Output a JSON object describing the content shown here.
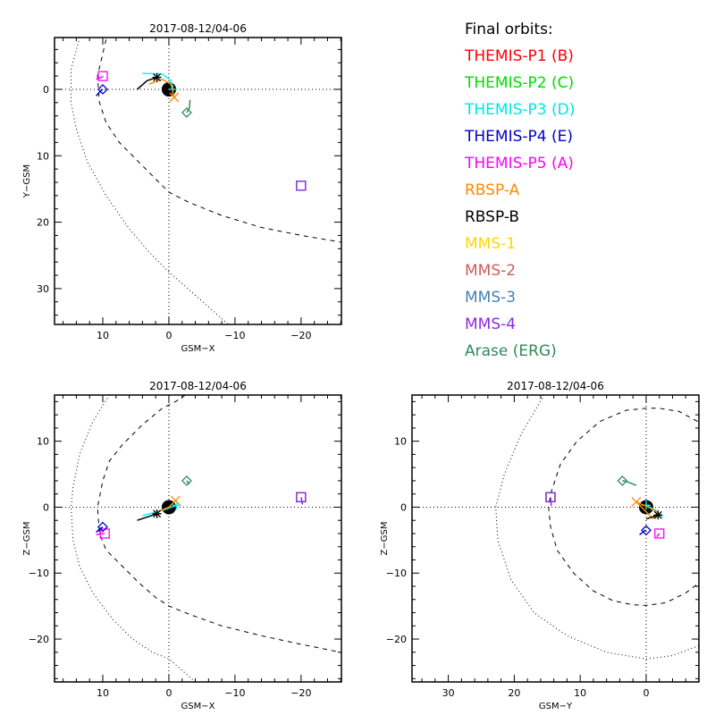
{
  "chart_data": [
    {
      "type": "scatter",
      "title": "2017-08-12/04-06",
      "xlabel": "GSM-X",
      "ylabel": "Y-GSM",
      "xlim": [
        17.3,
        -26.1
      ],
      "ylim": [
        -7.8,
        35.4
      ],
      "y_inverted": true,
      "xticks": [
        10,
        0,
        -10,
        -20
      ],
      "yticks": [
        0,
        10,
        20,
        30
      ],
      "reference_curves": [
        {
          "name": "magnetopause",
          "style": "dashed",
          "points": [
            [
              9.5,
              -7.5
            ],
            [
              10.8,
              -2
            ],
            [
              10.5,
              2
            ],
            [
              9.5,
              5
            ],
            [
              7.5,
              8
            ],
            [
              4.5,
              11
            ],
            [
              2,
              13.5
            ],
            [
              0,
              15.5
            ],
            [
              -3,
              17
            ],
            [
              -8,
              19
            ],
            [
              -14,
              20.8
            ],
            [
              -20,
              22
            ],
            [
              -26,
              23
            ]
          ]
        },
        {
          "name": "bow-shock",
          "style": "dotted",
          "points": [
            [
              13.5,
              -7.8
            ],
            [
              14.8,
              -3
            ],
            [
              14.8,
              2
            ],
            [
              14,
              6
            ],
            [
              12.3,
              11
            ],
            [
              9.5,
              16
            ],
            [
              6,
              21
            ],
            [
              3,
              24.5
            ],
            [
              0,
              27.5
            ],
            [
              -4,
              31
            ],
            [
              -9,
              35.4
            ]
          ]
        }
      ],
      "spacecraft": [
        {
          "name": "THEMIS-P5",
          "color": "#ff00ff",
          "marker": "square",
          "pos": [
            10,
            -2
          ],
          "track": [
            [
              11,
              -1.5
            ],
            [
              10.2,
              -1.8
            ]
          ]
        },
        {
          "name": "THEMIS-P4",
          "color": "#0000cc",
          "marker": "diamond",
          "pos": [
            10,
            0
          ],
          "track": [
            [
              11,
              1
            ],
            [
              10.3,
              0.2
            ]
          ]
        },
        {
          "name": "THEMIS-P3",
          "color": "#00ffff",
          "marker": "plus",
          "pos": [
            -0.6,
            0
          ],
          "track": [
            [
              4,
              -2.4
            ],
            [
              1,
              -2.3
            ],
            [
              -0.3,
              -1.3
            ],
            [
              -0.6,
              0
            ]
          ]
        },
        {
          "name": "RBSP-A",
          "color": "#ff8800",
          "marker": "x",
          "pos": [
            -0.8,
            1.2
          ],
          "track": [
            [
              3,
              -0.8
            ],
            [
              1,
              -1.5
            ],
            [
              -0.3,
              -0.8
            ],
            [
              -0.8,
              1.2
            ]
          ]
        },
        {
          "name": "RBSP-B",
          "color": "#000000",
          "marker": "asterisk",
          "pos": [
            1.8,
            -1.8
          ],
          "track": [
            [
              4.8,
              0
            ],
            [
              3.3,
              -1.3
            ],
            [
              1.8,
              -1.8
            ]
          ]
        },
        {
          "name": "Arase (ERG)",
          "color": "#2e8b57",
          "marker": "diamond",
          "pos": [
            -2.7,
            3.5
          ],
          "track": [
            [
              -3.2,
              1.6
            ],
            [
              -3.1,
              2.8
            ],
            [
              -2.7,
              3.5
            ]
          ]
        },
        {
          "name": "MMS-1",
          "color": "#ffd700",
          "marker": "square",
          "pos": [
            -20,
            14.5
          ],
          "track": []
        },
        {
          "name": "MMS-2",
          "color": "#cd5c5c",
          "marker": "square",
          "pos": [
            -20,
            14.5
          ],
          "track": []
        },
        {
          "name": "MMS-3",
          "color": "#4682b4",
          "marker": "square",
          "pos": [
            -20,
            14.5
          ],
          "track": []
        },
        {
          "name": "MMS-4",
          "color": "#8a2be2",
          "marker": "square",
          "pos": [
            -20,
            14.5
          ],
          "track": []
        }
      ]
    },
    {
      "type": "scatter",
      "title": "2017-08-12/04-06",
      "xlabel": "GSM-X",
      "ylabel": "Z-GSM",
      "xlim": [
        17.3,
        -26.1
      ],
      "ylim": [
        -26.5,
        17.0
      ],
      "xticks": [
        10,
        0,
        -10,
        -20
      ],
      "yticks": [
        10,
        0,
        -10,
        -20
      ],
      "reference_curves": [
        {
          "name": "magnetopause",
          "style": "dashed",
          "points": [
            [
              -2.5,
              17
            ],
            [
              -1,
              16
            ],
            [
              1,
              15
            ],
            [
              4,
              12.5
            ],
            [
              7,
              9.5
            ],
            [
              9,
              7
            ],
            [
              10,
              4
            ],
            [
              10.8,
              0
            ],
            [
              10.5,
              -4
            ],
            [
              9.5,
              -6.5
            ],
            [
              7,
              -9
            ],
            [
              4.5,
              -11.5
            ],
            [
              2,
              -13.7
            ],
            [
              0,
              -15
            ],
            [
              -3,
              -16.2
            ],
            [
              -8,
              -18
            ],
            [
              -14,
              -19.5
            ],
            [
              -20,
              -20.8
            ],
            [
              -26,
              -22
            ]
          ]
        },
        {
          "name": "bow-shock",
          "style": "dotted",
          "points": [
            [
              9,
              17
            ],
            [
              11.5,
              13
            ],
            [
              13.5,
              8
            ],
            [
              14.5,
              3
            ],
            [
              14.8,
              0
            ],
            [
              14.5,
              -5
            ],
            [
              13.5,
              -9
            ],
            [
              11.5,
              -13
            ],
            [
              8.5,
              -17
            ],
            [
              5.5,
              -20
            ],
            [
              2.5,
              -22
            ],
            [
              0,
              -23
            ],
            [
              -4,
              -26.5
            ]
          ]
        }
      ],
      "spacecraft": [
        {
          "name": "THEMIS-P5",
          "color": "#ff00ff",
          "marker": "square",
          "pos": [
            9.7,
            -4
          ],
          "track": [
            [
              11,
              -4.2
            ],
            [
              10.3,
              -4
            ]
          ]
        },
        {
          "name": "THEMIS-P4",
          "color": "#0000cc",
          "marker": "diamond",
          "pos": [
            10,
            -3
          ],
          "track": [
            [
              11,
              -3.8
            ],
            [
              10.3,
              -3.2
            ]
          ]
        },
        {
          "name": "THEMIS-P3",
          "color": "#00ffff",
          "marker": "plus",
          "pos": [
            -1.2,
            0.3
          ],
          "track": [
            [
              4,
              -1.3
            ],
            [
              1,
              -0.5
            ],
            [
              -1.2,
              0.3
            ]
          ]
        },
        {
          "name": "RBSP-A",
          "color": "#ff8800",
          "marker": "x",
          "pos": [
            -1,
            1
          ],
          "track": [
            [
              2,
              -0.8
            ],
            [
              0,
              0
            ],
            [
              -1,
              1
            ]
          ]
        },
        {
          "name": "RBSP-B",
          "color": "#000000",
          "marker": "asterisk",
          "pos": [
            1.8,
            -1
          ],
          "track": [
            [
              4.8,
              -2
            ],
            [
              3,
              -1.4
            ],
            [
              1.8,
              -1
            ]
          ]
        },
        {
          "name": "Arase (ERG)",
          "color": "#2e8b57",
          "marker": "diamond",
          "pos": [
            -2.7,
            4
          ],
          "track": [
            [
              -3.1,
              3.5
            ],
            [
              -2.7,
              4
            ]
          ]
        },
        {
          "name": "MMS-1",
          "color": "#ffd700",
          "marker": "square",
          "pos": [
            -20,
            1.5
          ],
          "track": []
        },
        {
          "name": "MMS-2",
          "color": "#cd5c5c",
          "marker": "square",
          "pos": [
            -20,
            1.5
          ],
          "track": []
        },
        {
          "name": "MMS-3",
          "color": "#4682b4",
          "marker": "square",
          "pos": [
            -20,
            1.5
          ],
          "track": []
        },
        {
          "name": "MMS-4",
          "color": "#8a2be2",
          "marker": "square",
          "pos": [
            -20,
            1.5
          ],
          "track": [
            [
              -20.2,
              0.4
            ],
            [
              -20,
              1.5
            ]
          ]
        }
      ]
    },
    {
      "type": "scatter",
      "title": "2017-08-12/04-06",
      "xlabel": "GSM-Y",
      "ylabel": "Z-GSM",
      "xlim": [
        35.5,
        -8.0
      ],
      "ylim": [
        -26.5,
        17.0
      ],
      "xticks": [
        30,
        20,
        10,
        0
      ],
      "yticks": [
        10,
        0,
        -10,
        -20
      ],
      "reference_curves": [
        {
          "name": "magnetopause",
          "style": "dashed",
          "points": [
            [
              -7.8,
              13
            ],
            [
              -5,
              14.5
            ],
            [
              -2,
              15
            ],
            [
              0,
              15
            ],
            [
              3,
              14.7
            ],
            [
              7,
              13
            ],
            [
              10.5,
              10
            ],
            [
              13,
              6.5
            ],
            [
              14.5,
              2
            ],
            [
              14.8,
              0
            ],
            [
              14.5,
              -3
            ],
            [
              13.5,
              -6.5
            ],
            [
              11,
              -10
            ],
            [
              8,
              -12.7
            ],
            [
              5,
              -14.2
            ],
            [
              2,
              -14.8
            ],
            [
              0,
              -14.9
            ],
            [
              -3,
              -14.5
            ],
            [
              -6,
              -13
            ],
            [
              -8,
              -11.5
            ]
          ]
        },
        {
          "name": "bow-shock",
          "style": "dotted",
          "points": [
            [
              15.5,
              17
            ],
            [
              19,
              11
            ],
            [
              21.5,
              5
            ],
            [
              22.8,
              0
            ],
            [
              22.5,
              -5
            ],
            [
              20.5,
              -11
            ],
            [
              17,
              -16
            ],
            [
              12,
              -19.5
            ],
            [
              6,
              -22
            ],
            [
              0,
              -23
            ],
            [
              -4,
              -22.5
            ],
            [
              -8,
              -21
            ]
          ]
        }
      ],
      "spacecraft": [
        {
          "name": "THEMIS-P5",
          "color": "#ff00ff",
          "marker": "square",
          "pos": [
            -2,
            -4
          ],
          "track": [
            [
              -1.6,
              -4.5
            ]
          ]
        },
        {
          "name": "THEMIS-P4",
          "color": "#0000cc",
          "marker": "diamond",
          "pos": [
            0,
            -3.5
          ],
          "track": [
            [
              1,
              -4.2
            ],
            [
              0.3,
              -3.6
            ]
          ]
        },
        {
          "name": "THEMIS-P3",
          "color": "#00ffff",
          "marker": "plus",
          "pos": [
            0,
            0.3
          ],
          "track": [
            [
              0,
              0.3
            ],
            [
              -1.5,
              -0.5
            ],
            [
              -2.5,
              -1.5
            ]
          ]
        },
        {
          "name": "RBSP-A",
          "color": "#ff8800",
          "marker": "x",
          "pos": [
            1.5,
            0.8
          ],
          "track": [
            [
              1.5,
              0.8
            ],
            [
              -1,
              -0.3
            ],
            [
              -2,
              -1
            ],
            [
              -1,
              -1.7
            ]
          ]
        },
        {
          "name": "RBSP-B",
          "color": "#000000",
          "marker": "asterisk",
          "pos": [
            -1.8,
            -1.2
          ],
          "track": [
            [
              0,
              -1.8
            ],
            [
              -1.8,
              -1.2
            ]
          ]
        },
        {
          "name": "Arase (ERG)",
          "color": "#2e8b57",
          "marker": "diamond",
          "pos": [
            3.6,
            4
          ],
          "track": [
            [
              1.5,
              3.3
            ],
            [
              3,
              3.9
            ],
            [
              3.6,
              4
            ]
          ]
        },
        {
          "name": "MMS-1",
          "color": "#ffd700",
          "marker": "square",
          "pos": [
            14.5,
            1.5
          ],
          "track": []
        },
        {
          "name": "MMS-2",
          "color": "#cd5c5c",
          "marker": "square",
          "pos": [
            14.5,
            1.5
          ],
          "track": []
        },
        {
          "name": "MMS-3",
          "color": "#4682b4",
          "marker": "square",
          "pos": [
            14.5,
            1.5
          ],
          "track": []
        },
        {
          "name": "MMS-4",
          "color": "#8a2be2",
          "marker": "square",
          "pos": [
            14.5,
            1.5
          ],
          "track": [
            [
              14.4,
              0.2
            ],
            [
              14.5,
              1.5
            ]
          ]
        }
      ]
    }
  ],
  "legend": {
    "title": "Final orbits:",
    "entries": [
      {
        "label": "THEMIS-P1 (B)",
        "color": "#ff0000"
      },
      {
        "label": "THEMIS-P2 (C)",
        "color": "#00dd00"
      },
      {
        "label": "THEMIS-P3 (D)",
        "color": "#00e5e5"
      },
      {
        "label": "THEMIS-P4 (E)",
        "color": "#0000cc"
      },
      {
        "label": "THEMIS-P5 (A)",
        "color": "#ff00ff"
      },
      {
        "label": "RBSP-A",
        "color": "#ff8800"
      },
      {
        "label": "RBSP-B",
        "color": "#000000"
      },
      {
        "label": "MMS-1",
        "color": "#ffd700"
      },
      {
        "label": "MMS-2",
        "color": "#cd5c5c"
      },
      {
        "label": "MMS-3",
        "color": "#4682b4"
      },
      {
        "label": "MMS-4",
        "color": "#8a2be2"
      },
      {
        "label": "Arase (ERG)",
        "color": "#2e8b57"
      }
    ]
  }
}
